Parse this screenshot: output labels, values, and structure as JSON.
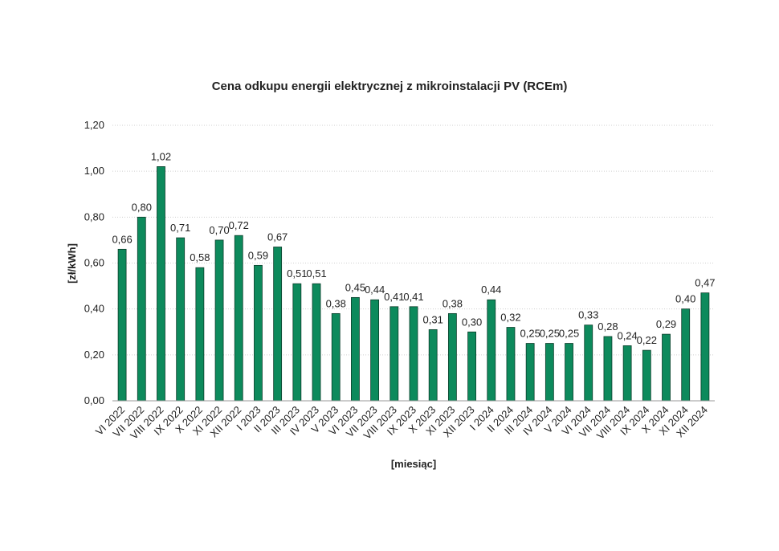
{
  "chart_data": {
    "type": "bar",
    "title": "Cena odkupu energii elektrycznej z mikroinstalacji PV (RCEm)",
    "y_label": "[zł/kWh]",
    "x_label": "[miesiąc]",
    "categories": [
      "VI 2022",
      "VII 2022",
      "VIII 2022",
      "IX 2022",
      "X 2022",
      "XI 2022",
      "XII 2022",
      "I 2023",
      "II 2023",
      "III 2023",
      "IV 2023",
      "V 2023",
      "VI 2023",
      "VII 2023",
      "VIII 2023",
      "IX 2023",
      "X 2023",
      "XI 2023",
      "XII 2023",
      "I 2024",
      "II 2024",
      "III 2024",
      "IV 2024",
      "V 2024",
      "VI 2024",
      "VII 2024",
      "VIII 2024",
      "IX 2024",
      "X 2024",
      "XI 2024",
      "XII 2024"
    ],
    "values": [
      0.66,
      0.8,
      1.02,
      0.71,
      0.58,
      0.7,
      0.72,
      0.59,
      0.67,
      0.51,
      0.51,
      0.38,
      0.45,
      0.44,
      0.41,
      0.41,
      0.31,
      0.38,
      0.3,
      0.44,
      0.32,
      0.25,
      0.25,
      0.25,
      0.33,
      0.28,
      0.24,
      0.22,
      0.29,
      0.4,
      0.47
    ],
    "value_labels": [
      "0,66",
      "0,80",
      "1,02",
      "0,71",
      "0,58",
      "0,70",
      "0,72",
      "0,59",
      "0,67",
      "0,51",
      "0,51",
      "0,38",
      "0,45",
      "0,44",
      "0,41",
      "0,41",
      "0,31",
      "0,38",
      "0,30",
      "0,44",
      "0,32",
      "0,25",
      "0,25",
      "0,25",
      "0,33",
      "0,28",
      "0,24",
      "0,22",
      "0,29",
      "0,40",
      "0,47"
    ],
    "color": "#0d8a5c",
    "ylim": [
      0,
      1.2
    ],
    "yticks": [
      {
        "value": 0,
        "label": "0,00"
      },
      {
        "value": 0.2,
        "label": "0,20"
      },
      {
        "value": 0.4,
        "label": "0,40"
      },
      {
        "value": 0.6,
        "label": "0,60"
      },
      {
        "value": 0.8,
        "label": "0,80"
      },
      {
        "value": 1.0,
        "label": "1,00"
      },
      {
        "value": 1.2,
        "label": "1,20"
      }
    ],
    "grid": true
  }
}
